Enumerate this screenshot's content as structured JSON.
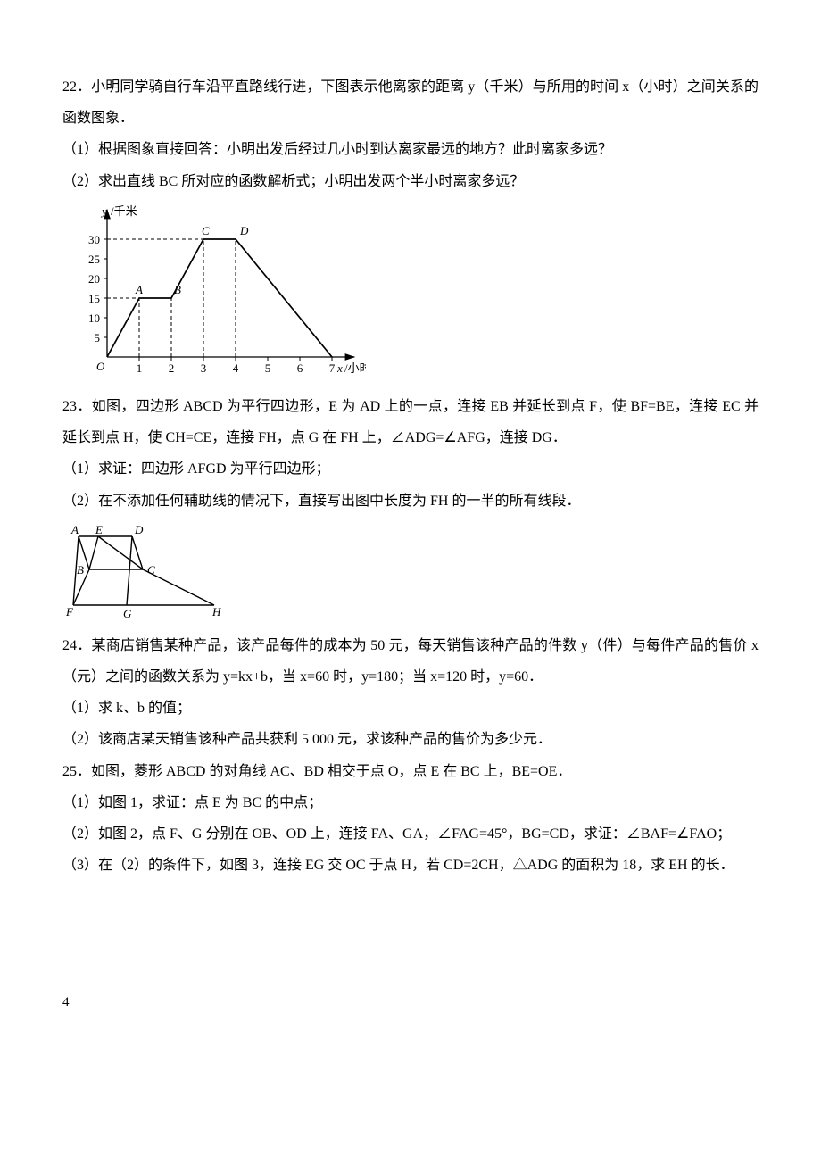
{
  "q22": {
    "stem": "22．小明同学骑自行车沿平直路线行进，下图表示他离家的距离 y（千米）与所用的时间 x（小时）之间关系的函数图象．",
    "p1": "（1）根据图象直接回答：小明出发后经过几小时到达离家最远的地方？此时离家多远？",
    "p2": "（2）求出直线 BC 所对应的函数解析式；小明出发两个半小时离家多远？",
    "chart": {
      "type": "line",
      "x_label": "x/小时",
      "y_label": "y/千米",
      "y_ticks": [
        5,
        10,
        15,
        20,
        25,
        30
      ],
      "x_ticks": [
        1,
        2,
        3,
        4,
        5,
        6,
        7
      ],
      "points": {
        "A": {
          "x": 1,
          "y": 15,
          "label": "A"
        },
        "B": {
          "x": 2,
          "y": 15,
          "label": "B"
        },
        "C": {
          "x": 3,
          "y": 30,
          "label": "C"
        },
        "D": {
          "x": 4,
          "y": 30,
          "label": "D"
        },
        "E": {
          "x": 7,
          "y": 0
        }
      },
      "origin_label": "O",
      "axis_color": "#000000",
      "line_color": "#000000",
      "dash_color": "#000000",
      "bg": "#ffffff",
      "font_size_pt": 13
    }
  },
  "q23": {
    "stem": "23．如图，四边形 ABCD 为平行四边形，E 为 AD 上的一点，连接 EB 并延长到点 F，使 BF=BE，连接 EC 并延长到点 H，使 CH=CE，连接 FH，点 G 在 FH 上，∠ADG=∠AFG，连接 DG．",
    "p1": "（1）求证：四边形 AFGD 为平行四边形；",
    "p2": "（2）在不添加任何辅助线的情况下，直接写出图中长度为 FH 的一半的所有线段．",
    "diagram": {
      "labels": {
        "A": "A",
        "E": "E",
        "D": "D",
        "B": "B",
        "C": "C",
        "F": "F",
        "G": "G",
        "H": "H"
      },
      "line_color": "#000000",
      "bg": "#ffffff",
      "font_size_pt": 13
    }
  },
  "q24": {
    "stem": "24．某商店销售某种产品，该产品每件的成本为 50 元，每天销售该种产品的件数 y（件）与每件产品的售价 x（元）之间的函数关系为 y=kx+b，当 x=60 时，y=180；当 x=120 时，y=60．",
    "p1": "（1）求 k、b 的值；",
    "p2": "（2）该商店某天销售该种产品共获利 5 000 元，求该种产品的售价为多少元．"
  },
  "q25": {
    "stem": "25．如图，菱形 ABCD 的对角线 AC、BD 相交于点 O，点 E 在 BC 上，BE=OE．",
    "p1": "（1）如图 1，求证：点 E 为 BC 的中点；",
    "p2": "（2）如图 2，点 F、G 分别在 OB、OD 上，连接 FA、GA，∠FAG=45°，BG=CD，求证：∠BAF=∠FAO；",
    "p3": "（3）在（2）的条件下，如图 3，连接 EG 交 OC 于点 H，若 CD=2CH，△ADG 的面积为 18，求 EH 的长．"
  },
  "page_number": "4"
}
